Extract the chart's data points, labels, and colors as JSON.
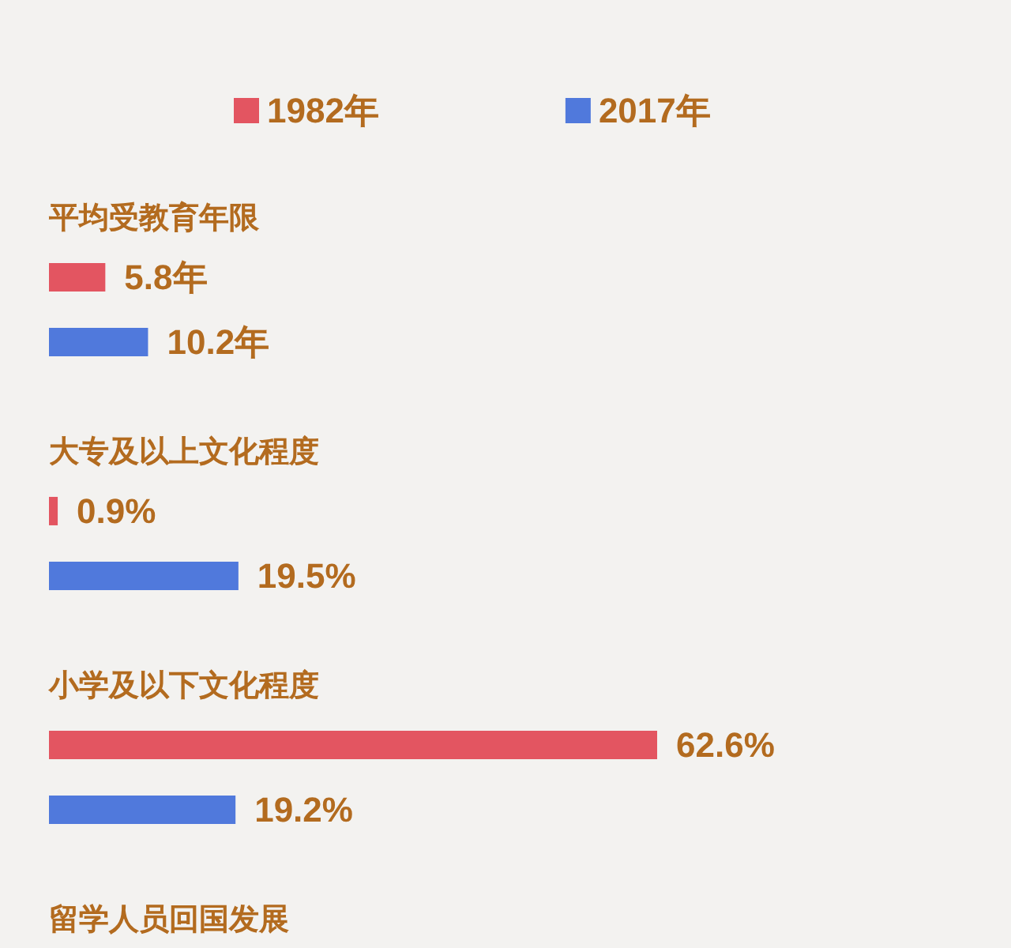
{
  "chart_data": {
    "type": "bar",
    "orientation": "horizontal",
    "categories": [
      "平均受教育年限",
      "大专及以上文化程度",
      "小学及以下文化程度",
      "留学人员回国发展"
    ],
    "series": [
      {
        "name": "1982年",
        "color": "#e35561",
        "values": [
          5.8,
          0.9,
          62.6,
          null
        ],
        "value_labels": [
          "5.8年",
          "0.9%",
          "62.6%",
          null
        ]
      },
      {
        "name": "2017年",
        "color": "#5079dc",
        "values": [
          10.2,
          19.5,
          19.2,
          null
        ],
        "value_labels": [
          "10.2年",
          "19.5%",
          "19.2%",
          null
        ]
      }
    ],
    "legend": "top",
    "tick_labels": "y",
    "grid": false
  }
}
